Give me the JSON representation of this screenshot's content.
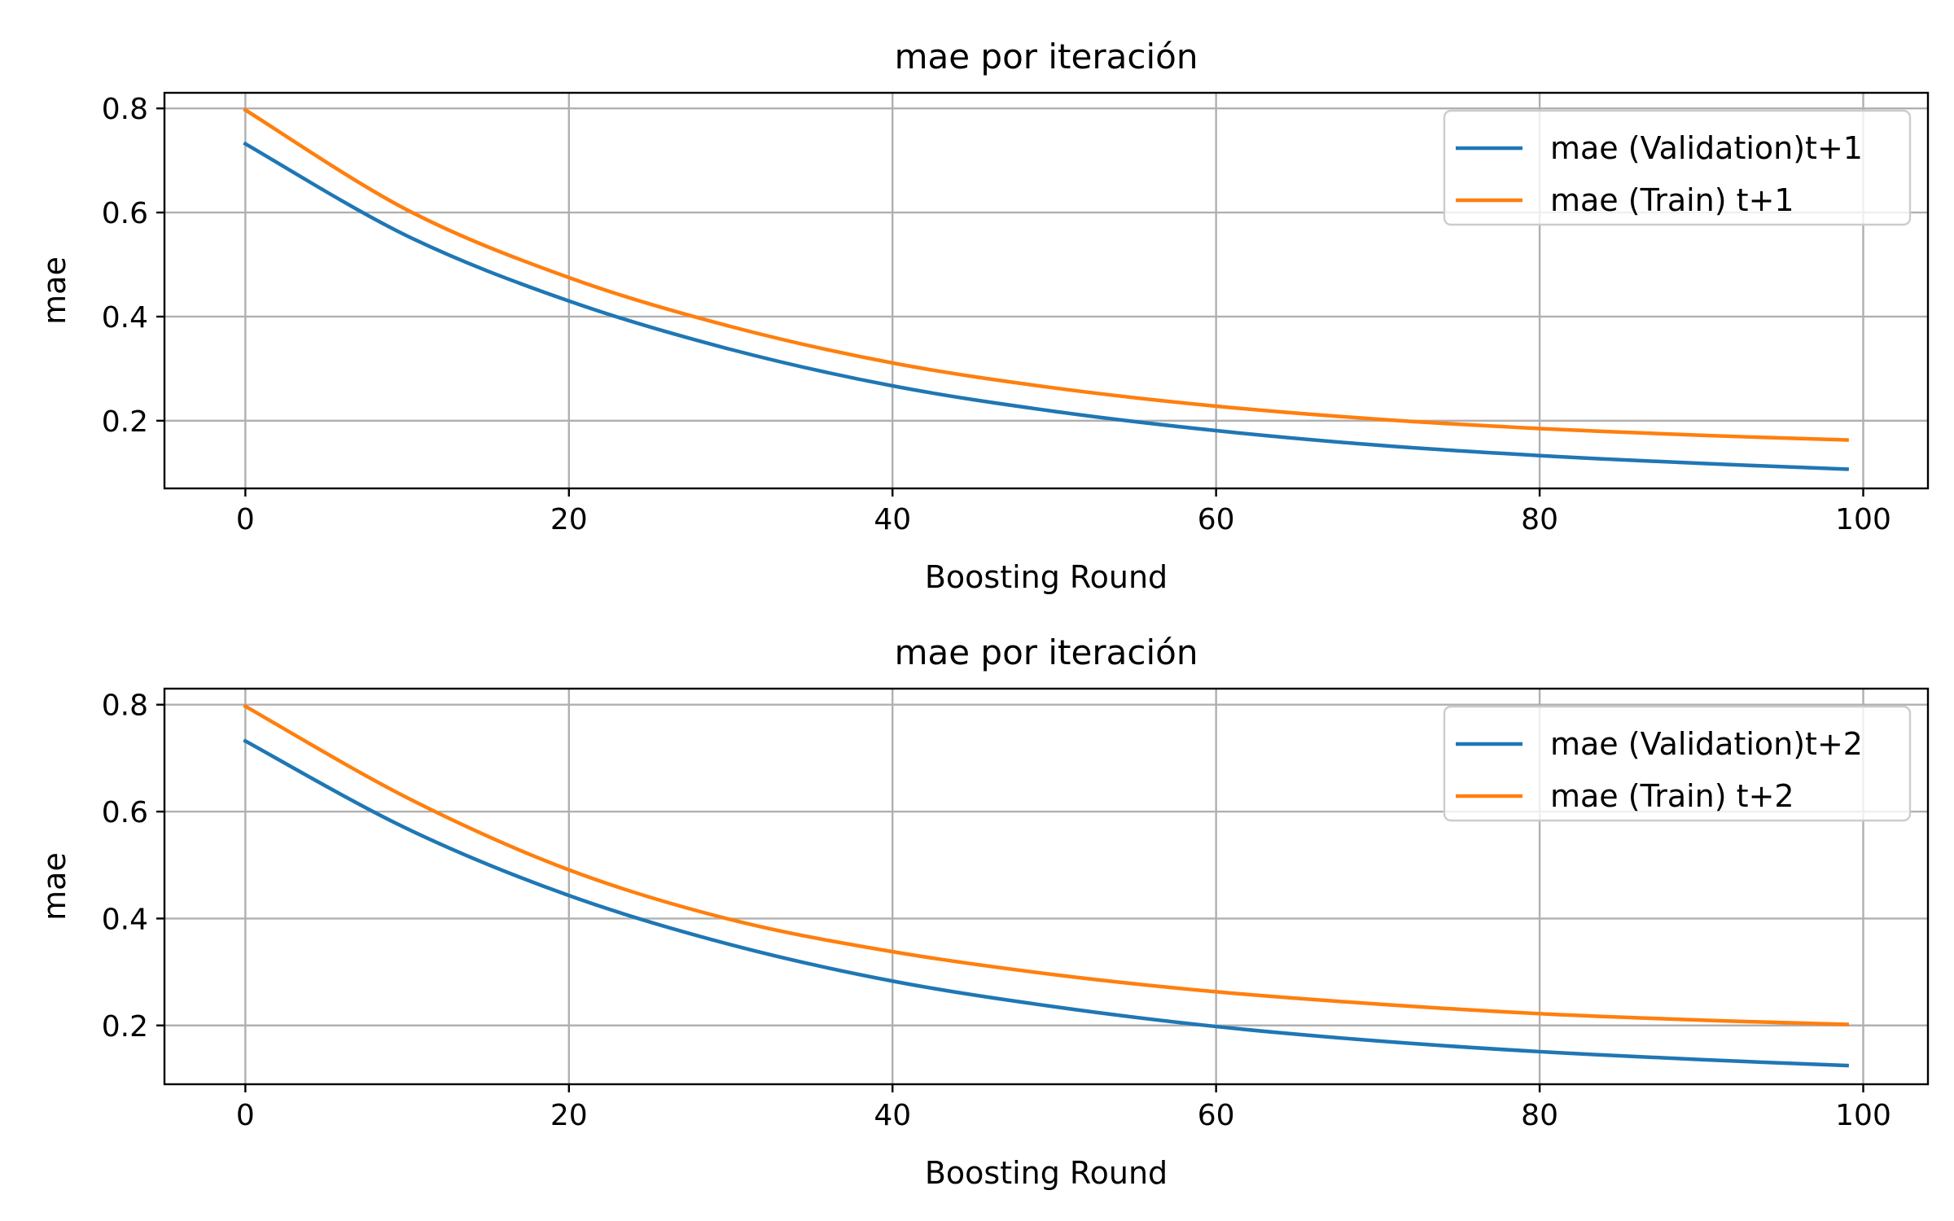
{
  "colors": {
    "series_blue": "#1f77b4",
    "series_orange": "#ff7f0e",
    "grid": "#b0b0b0"
  },
  "chart_data": [
    {
      "type": "line",
      "title": "mae por iteración",
      "xlabel": "Boosting Round",
      "ylabel": "mae",
      "xlim": [
        -5,
        104
      ],
      "ylim": [
        0.07,
        0.83
      ],
      "xticks": [
        0,
        20,
        40,
        60,
        80,
        100
      ],
      "yticks": [
        0.2,
        0.4,
        0.6,
        0.8
      ],
      "grid": true,
      "legend_position": "top-right",
      "x": [
        0,
        10,
        20,
        30,
        40,
        50,
        60,
        70,
        80,
        90,
        99
      ],
      "series": [
        {
          "name": "mae (Validation)t+1",
          "color": "#1f77b4",
          "values": [
            0.732,
            0.555,
            0.43,
            0.337,
            0.267,
            0.218,
            0.181,
            0.153,
            0.133,
            0.118,
            0.107
          ]
        },
        {
          "name": "mae (Train) t+1",
          "color": "#ff7f0e",
          "values": [
            0.797,
            0.605,
            0.475,
            0.381,
            0.311,
            0.263,
            0.228,
            0.203,
            0.185,
            0.172,
            0.163
          ]
        }
      ]
    },
    {
      "type": "line",
      "title": "mae por iteración",
      "xlabel": "Boosting Round",
      "ylabel": "mae",
      "xlim": [
        -5,
        104
      ],
      "ylim": [
        0.09,
        0.83
      ],
      "xticks": [
        0,
        20,
        40,
        60,
        80,
        100
      ],
      "yticks": [
        0.2,
        0.4,
        0.6,
        0.8
      ],
      "grid": true,
      "legend_position": "top-right",
      "x": [
        0,
        10,
        20,
        30,
        40,
        50,
        60,
        70,
        80,
        90,
        99
      ],
      "series": [
        {
          "name": "mae (Validation)t+2",
          "color": "#1f77b4",
          "values": [
            0.732,
            0.568,
            0.443,
            0.351,
            0.283,
            0.235,
            0.198,
            0.171,
            0.151,
            0.136,
            0.125
          ]
        },
        {
          "name": "mae (Train) t+2",
          "color": "#ff7f0e",
          "values": [
            0.797,
            0.626,
            0.491,
            0.398,
            0.338,
            0.295,
            0.263,
            0.24,
            0.222,
            0.21,
            0.202
          ]
        }
      ]
    }
  ]
}
